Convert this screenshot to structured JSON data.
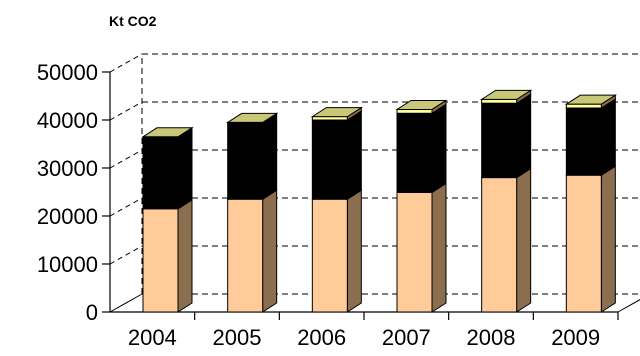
{
  "chart_data": {
    "type": "bar",
    "stacked": true,
    "three_d": true,
    "title": "",
    "ylabel": "Kt CO2",
    "xlabel": "",
    "ylim": [
      0,
      50000
    ],
    "yticks": [
      0,
      10000,
      20000,
      30000,
      40000,
      50000
    ],
    "grid": true,
    "legend": "none",
    "categories": [
      "2004",
      "2005",
      "2006",
      "2007",
      "2008",
      "2009"
    ],
    "series": [
      {
        "values": [
          21500,
          23500,
          23500,
          24900,
          28000,
          28500
        ],
        "color": "#FFCC99"
      },
      {
        "values": [
          15000,
          16000,
          16500,
          16500,
          15500,
          14000
        ],
        "color": "#000000"
      },
      {
        "values": [
          0,
          0,
          700,
          800,
          800,
          800
        ],
        "color": "#FFFF99"
      }
    ],
    "colors": {
      "side_face": "#8B6E4E",
      "top_face": "#C8C878",
      "gridline": "#000000"
    }
  }
}
